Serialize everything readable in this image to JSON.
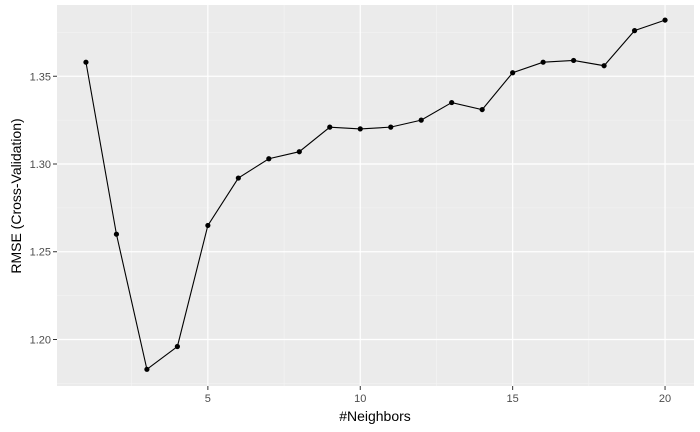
{
  "chart_data": {
    "type": "line",
    "title": "",
    "xlabel": "#Neighbors",
    "ylabel": "RMSE (Cross-Validation)",
    "xlim": [
      0.05,
      20.95
    ],
    "ylim": [
      1.1735,
      1.3906
    ],
    "x": [
      1,
      2,
      3,
      4,
      5,
      6,
      7,
      8,
      9,
      10,
      11,
      12,
      13,
      14,
      15,
      16,
      17,
      18,
      19,
      20
    ],
    "series": [
      {
        "values": [
          1.358,
          1.26,
          1.183,
          1.196,
          1.265,
          1.292,
          1.303,
          1.307,
          1.321,
          1.32,
          1.321,
          1.325,
          1.335,
          1.331,
          1.352,
          1.358,
          1.359,
          1.356,
          1.376,
          1.382
        ]
      }
    ],
    "xticks": [
      5,
      10,
      15,
      20
    ],
    "xtick_labels": [
      "5",
      "10",
      "15",
      "20"
    ],
    "yticks": [
      1.2,
      1.25,
      1.3,
      1.35
    ],
    "ytick_labels": [
      "1.20",
      "1.25",
      "1.30",
      "1.35"
    ],
    "grid": true,
    "legend": "none",
    "colors": {
      "panel": "#ebebeb",
      "grid_major": "#ffffff",
      "grid_minor": "#f5f5f5",
      "line": "#000000",
      "point": "#000000",
      "tick": "#333333",
      "tick_text": "#4d4d4d"
    }
  }
}
